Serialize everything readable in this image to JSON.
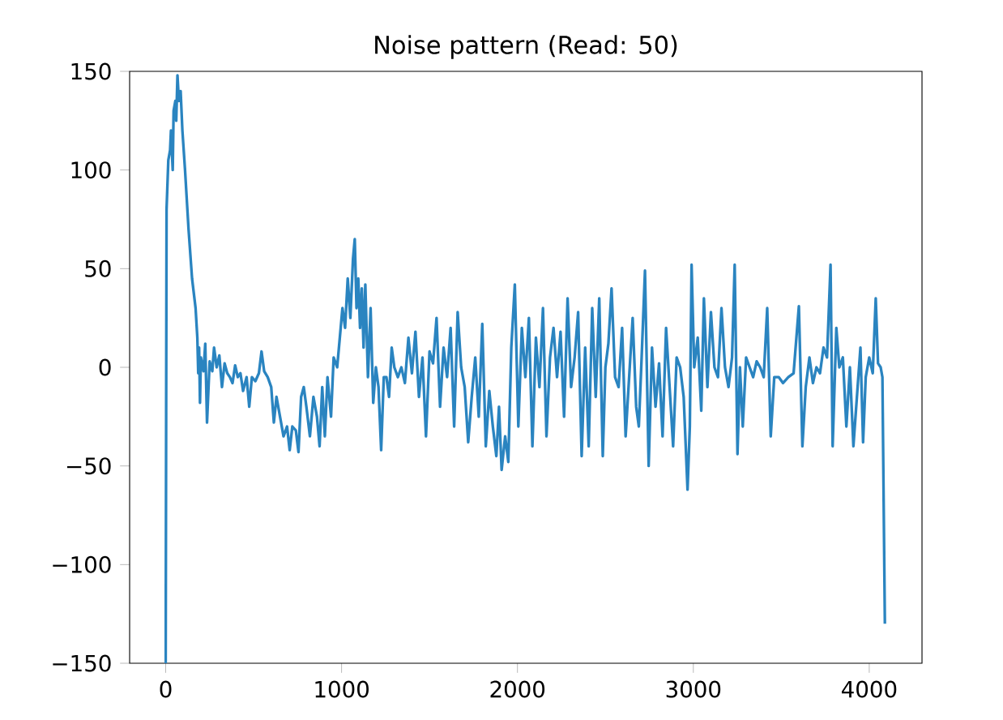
{
  "chart_data": {
    "type": "line",
    "title": "Noise pattern (Read: 50)",
    "x": [
      0,
      5,
      15,
      25,
      30,
      40,
      45,
      55,
      60,
      67,
      75,
      85,
      95,
      110,
      130,
      150,
      170,
      180,
      185,
      190,
      195,
      200,
      215,
      225,
      235,
      250,
      265,
      275,
      290,
      305,
      320,
      335,
      350,
      365,
      380,
      395,
      410,
      425,
      440,
      460,
      475,
      490,
      510,
      530,
      545,
      560,
      580,
      600,
      615,
      630,
      650,
      670,
      690,
      705,
      720,
      740,
      755,
      770,
      785,
      800,
      820,
      840,
      860,
      875,
      890,
      905,
      920,
      940,
      955,
      975,
      990,
      1005,
      1020,
      1035,
      1050,
      1065,
      1075,
      1085,
      1095,
      1105,
      1115,
      1125,
      1135,
      1150,
      1165,
      1180,
      1195,
      1210,
      1225,
      1240,
      1255,
      1270,
      1285,
      1300,
      1320,
      1340,
      1360,
      1380,
      1400,
      1420,
      1440,
      1460,
      1480,
      1500,
      1520,
      1540,
      1560,
      1580,
      1600,
      1620,
      1640,
      1660,
      1680,
      1700,
      1720,
      1740,
      1760,
      1780,
      1800,
      1820,
      1840,
      1860,
      1880,
      1895,
      1910,
      1930,
      1948,
      1965,
      1985,
      2005,
      2025,
      2045,
      2065,
      2085,
      2105,
      2125,
      2145,
      2165,
      2185,
      2205,
      2225,
      2245,
      2265,
      2285,
      2305,
      2325,
      2345,
      2365,
      2385,
      2405,
      2425,
      2445,
      2465,
      2485,
      2500,
      2517,
      2535,
      2555,
      2575,
      2595,
      2615,
      2635,
      2655,
      2675,
      2690,
      2706,
      2725,
      2746,
      2765,
      2785,
      2805,
      2825,
      2845,
      2865,
      2885,
      2905,
      2925,
      2945,
      2967,
      2980,
      2990,
      3005,
      3025,
      3045,
      3060,
      3080,
      3100,
      3120,
      3140,
      3160,
      3180,
      3200,
      3220,
      3235,
      3251,
      3265,
      3281,
      3300,
      3320,
      3340,
      3360,
      3380,
      3400,
      3420,
      3440,
      3460,
      3486,
      3510,
      3540,
      3570,
      3600,
      3620,
      3639,
      3660,
      3680,
      3700,
      3720,
      3740,
      3760,
      3780,
      3792,
      3813,
      3830,
      3850,
      3870,
      3890,
      3910,
      3950,
      3965,
      3980,
      4000,
      4020,
      4037,
      4050,
      4065,
      4075,
      4089
    ],
    "series": [
      {
        "color": "#2a84c0",
        "values": [
          -150,
          80,
          105,
          110,
          120,
          100,
          130,
          135,
          125,
          148,
          135,
          140,
          120,
          100,
          70,
          45,
          30,
          15,
          -3,
          10,
          -18,
          5,
          -2,
          12,
          -28,
          3,
          -2,
          10,
          0,
          6,
          -10,
          2,
          -3,
          -5,
          -8,
          1,
          -5,
          -3,
          -12,
          -5,
          -20,
          -5,
          -7,
          -3,
          8,
          -2,
          -5,
          -10,
          -28,
          -15,
          -25,
          -35,
          -30,
          -42,
          -30,
          -32,
          -43,
          -15,
          -10,
          -20,
          -35,
          -15,
          -25,
          -40,
          -10,
          -35,
          -5,
          -25,
          5,
          0,
          15,
          30,
          20,
          45,
          25,
          55,
          65,
          30,
          45,
          20,
          40,
          10,
          42,
          -5,
          30,
          -18,
          0,
          -10,
          -42,
          -5,
          -5,
          -15,
          10,
          0,
          -5,
          0,
          -8,
          15,
          -3,
          18,
          -15,
          5,
          -35,
          8,
          2,
          25,
          -20,
          10,
          -5,
          20,
          -30,
          28,
          0,
          -10,
          -38,
          -15,
          5,
          -25,
          22,
          -40,
          -12,
          -30,
          -45,
          -20,
          -52,
          -35,
          -48,
          10,
          42,
          -30,
          20,
          -5,
          25,
          -40,
          15,
          -10,
          30,
          -35,
          5,
          20,
          -5,
          18,
          -25,
          35,
          -10,
          5,
          28,
          -45,
          10,
          -40,
          30,
          -15,
          35,
          -45,
          0,
          12,
          40,
          -5,
          -10,
          20,
          -35,
          -5,
          25,
          -20,
          -30,
          5,
          49,
          -50,
          10,
          -20,
          2,
          -35,
          20,
          -10,
          -40,
          5,
          0,
          -15,
          -62,
          -30,
          52,
          0,
          15,
          -22,
          35,
          -10,
          28,
          0,
          -5,
          30,
          0,
          -10,
          5,
          52,
          -44,
          0,
          -30,
          5,
          0,
          -5,
          3,
          0,
          -5,
          30,
          -35,
          -5,
          -5,
          -8,
          -5,
          -3,
          31,
          -40,
          -10,
          5,
          -8,
          0,
          -3,
          10,
          5,
          52,
          -40,
          20,
          0,
          5,
          -30,
          0,
          -40,
          10,
          -38,
          -5,
          5,
          -3,
          35,
          2,
          0,
          -5,
          -130
        ]
      }
    ],
    "xlim": [
      -205,
      4300
    ],
    "ylim": [
      -150,
      150
    ],
    "xticks": [
      0,
      1000,
      2000,
      3000,
      4000
    ],
    "yticks": [
      {
        "value": -150,
        "label": "−150"
      },
      {
        "value": -100,
        "label": "−100"
      },
      {
        "value": -50,
        "label": "−50"
      },
      0,
      50,
      100,
      150
    ]
  }
}
